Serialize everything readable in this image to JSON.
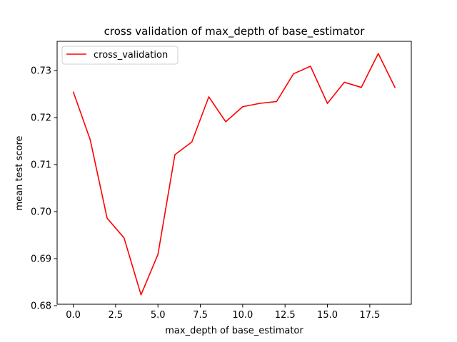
{
  "chart_data": {
    "type": "line",
    "title": "cross validation of max_depth of base_estimator",
    "xlabel": "max_depth of base_estimator",
    "ylabel": "mean test score",
    "xlim": [
      -0.95,
      19.95
    ],
    "ylim": [
      0.6803,
      0.7362
    ],
    "xticks": [
      0.0,
      2.5,
      5.0,
      7.5,
      10.0,
      12.5,
      15.0,
      17.5
    ],
    "xtick_labels": [
      "0.0",
      "2.5",
      "5.0",
      "7.5",
      "10.0",
      "12.5",
      "15.0",
      "17.5"
    ],
    "yticks": [
      0.68,
      0.69,
      0.7,
      0.71,
      0.72,
      0.73
    ],
    "ytick_labels": [
      "0.68",
      "0.69",
      "0.70",
      "0.71",
      "0.72",
      "0.73"
    ],
    "grid": false,
    "legend_position": "upper-left",
    "x": [
      0,
      1,
      2,
      3,
      4,
      5,
      6,
      7,
      8,
      9,
      10,
      11,
      12,
      13,
      14,
      15,
      16,
      17,
      18,
      19
    ],
    "series": [
      {
        "name": "cross_validation",
        "color": "#ff0000",
        "values": [
          0.7255,
          0.7153,
          0.6986,
          0.6944,
          0.6823,
          0.6909,
          0.7121,
          0.7148,
          0.7244,
          0.7191,
          0.7223,
          0.723,
          0.7234,
          0.7293,
          0.7309,
          0.723,
          0.7275,
          0.7264,
          0.7336,
          0.7263
        ]
      }
    ]
  }
}
